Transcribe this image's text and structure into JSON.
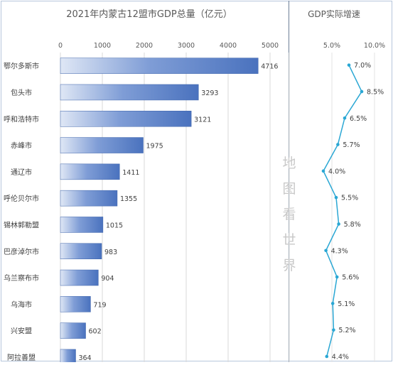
{
  "chart_data": [
    {
      "type": "bar",
      "orientation": "horizontal",
      "title": "2021年内蒙古12盟市GDP总量（亿元）",
      "categories": [
        "鄂尔多斯市",
        "包头市",
        "呼和浩特市",
        "赤峰市",
        "通辽市",
        "呼伦贝尔市",
        "锡林郭勒盟",
        "巴彦淖尔市",
        "乌兰察布市",
        "乌海市",
        "兴安盟",
        "阿拉善盟"
      ],
      "values": [
        4716,
        3293,
        3121,
        1975,
        1411,
        1355,
        1015,
        983,
        904,
        719,
        602,
        364
      ],
      "data_labels": [
        "4716",
        "3293",
        "3121",
        "1975",
        "1411",
        "1355",
        "1015",
        "983",
        "904",
        "719",
        "602",
        "364"
      ],
      "xlim": [
        0,
        5000
      ],
      "xticks": [
        "0",
        "1000",
        "2000",
        "3000",
        "4000",
        "5000"
      ],
      "grid": true,
      "bar_color": "#4a72be"
    },
    {
      "type": "line",
      "title": "GDP实际增速",
      "values": [
        7.0,
        8.5,
        6.5,
        5.7,
        4.0,
        5.5,
        5.8,
        4.3,
        5.6,
        5.1,
        5.2,
        4.4
      ],
      "data_labels": [
        "7.0%",
        "8.5%",
        "6.5%",
        "5.7%",
        "4.0%",
        "5.5%",
        "5.8%",
        "4.3%",
        "5.6%",
        "5.1%",
        "5.2%",
        "4.4%"
      ],
      "xlim": [
        0,
        10
      ],
      "xticks": [
        "",
        "5.0%",
        "10.0%"
      ],
      "grid": true,
      "line_color": "#2aa7d4"
    }
  ],
  "watermark": [
    "地",
    "图",
    "看",
    "世",
    "界"
  ]
}
